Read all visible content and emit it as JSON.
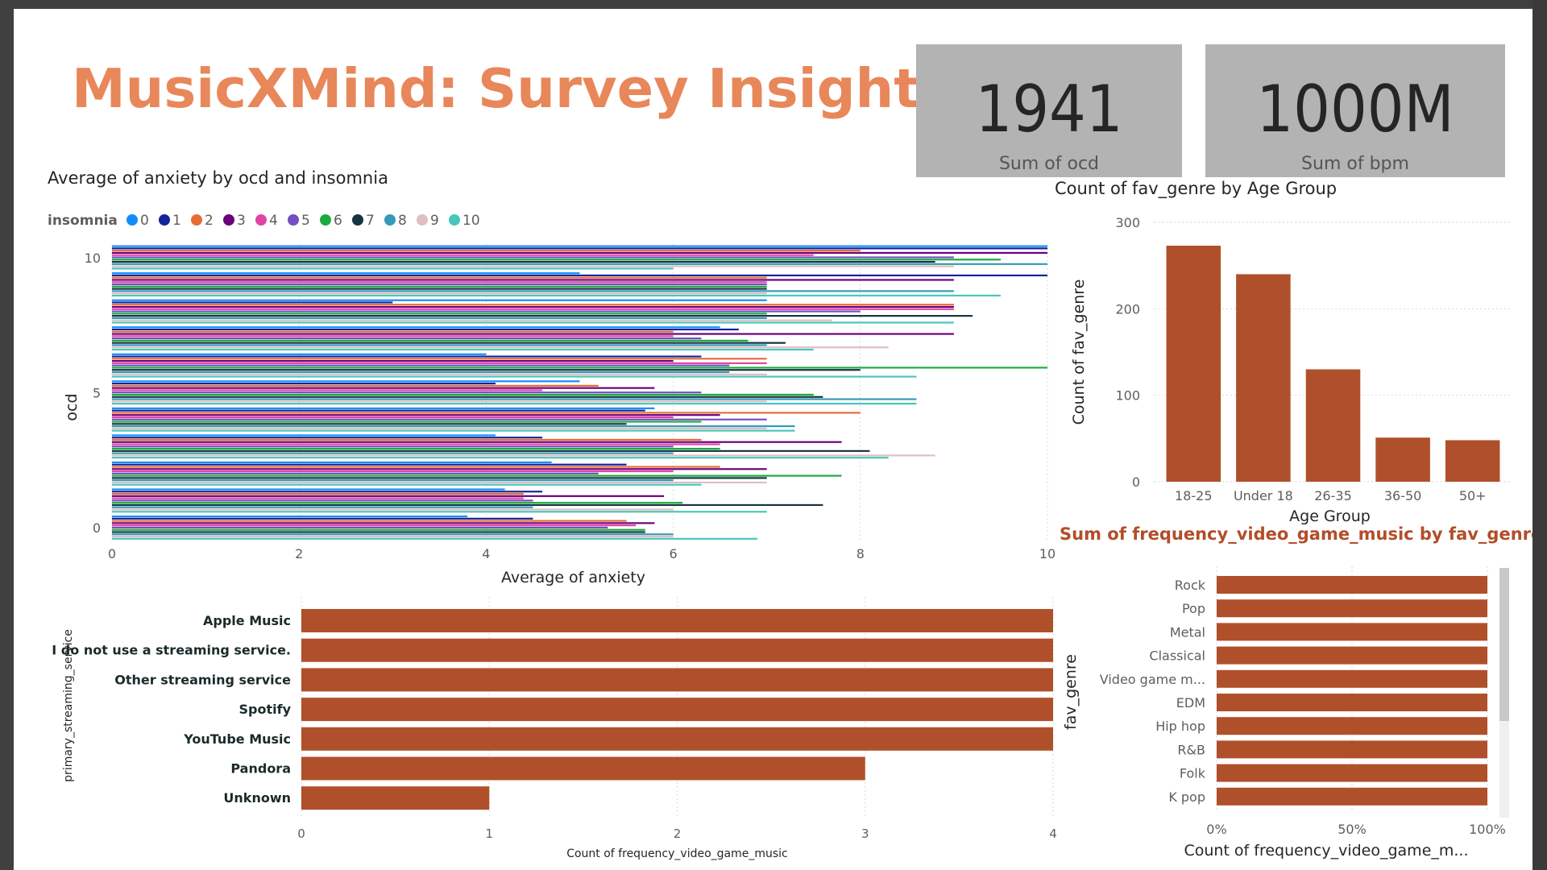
{
  "title": "MusicXMind: Survey Insights",
  "cards": [
    {
      "value": "1941",
      "label": "Sum of ocd"
    },
    {
      "value": "1000M",
      "label": "Sum of bpm"
    }
  ],
  "chart_data": [
    {
      "id": "anxiety",
      "type": "bar",
      "orientation": "horizontal",
      "title": "Average of anxiety by ocd and insomnia",
      "xlabel": "Average of anxiety",
      "ylabel": "ocd",
      "legend_title": "insomnia",
      "legend_position": "top-left",
      "xlim": [
        0,
        10
      ],
      "x_ticks": [
        "0",
        "2",
        "4",
        "6",
        "8",
        "10"
      ],
      "ylim": [
        0,
        10
      ],
      "y_ticks": [
        "0",
        "5",
        "10"
      ],
      "grid": true,
      "categories": [
        "0",
        "1",
        "2",
        "3",
        "4",
        "5",
        "6",
        "7",
        "8",
        "9",
        "10"
      ],
      "series": [
        {
          "name": "0",
          "color": "#118dff",
          "values": [
            3.8,
            4.2,
            4.7,
            4.1,
            5.8,
            5.0,
            4.0,
            6.5,
            7.0,
            5.0,
            10.0
          ]
        },
        {
          "name": "1",
          "color": "#12239e",
          "values": [
            4.5,
            4.6,
            5.5,
            4.6,
            5.7,
            4.1,
            6.3,
            6.7,
            3.0,
            10.0,
            10.0
          ]
        },
        {
          "name": "2",
          "color": "#e66c37",
          "values": [
            5.5,
            4.4,
            6.5,
            6.3,
            8.0,
            5.2,
            7.0,
            6.0,
            9.0,
            7.0,
            8.0
          ]
        },
        {
          "name": "3",
          "color": "#6b007b",
          "values": [
            5.8,
            5.9,
            7.0,
            7.8,
            6.5,
            5.8,
            6.0,
            9.0,
            9.0,
            9.0,
            10.0
          ]
        },
        {
          "name": "4",
          "color": "#e044a7",
          "values": [
            5.6,
            4.4,
            6.0,
            6.5,
            6.0,
            4.6,
            7.0,
            6.0,
            9.0,
            7.0,
            7.5
          ]
        },
        {
          "name": "5",
          "color": "#744ec2",
          "values": [
            5.3,
            4.5,
            5.2,
            6.0,
            7.0,
            6.3,
            6.6,
            6.3,
            8.0,
            7.0,
            9.0
          ]
        },
        {
          "name": "6",
          "color": "#1aab40",
          "values": [
            5.7,
            6.1,
            7.8,
            6.5,
            6.3,
            7.5,
            10.0,
            6.8,
            7.0,
            7.0,
            9.5
          ]
        },
        {
          "name": "7",
          "color": "#15343f",
          "values": [
            5.7,
            7.6,
            7.0,
            8.1,
            5.5,
            7.6,
            8.0,
            7.2,
            9.2,
            7.0,
            8.8
          ]
        },
        {
          "name": "8",
          "color": "#3599b8",
          "values": [
            6.0,
            4.5,
            6.0,
            6.0,
            7.3,
            8.6,
            6.6,
            7.0,
            7.0,
            9.0,
            10.0
          ]
        },
        {
          "name": "9",
          "color": "#dfbfbf",
          "values": [
            6.0,
            6.0,
            7.0,
            8.8,
            7.0,
            7.0,
            7.0,
            8.3,
            7.7,
            7.0,
            9.0
          ]
        },
        {
          "name": "10",
          "color": "#4ac5bb",
          "values": [
            6.9,
            7.0,
            6.3,
            8.3,
            7.3,
            8.6,
            8.6,
            7.5,
            9.0,
            9.5,
            6.0
          ]
        }
      ]
    },
    {
      "id": "age",
      "type": "bar",
      "title": "Count of fav_genre by Age Group",
      "xlabel": "Age Group",
      "ylabel": "Count of fav_genre",
      "color": "#b0502a",
      "ylim": [
        0,
        300
      ],
      "y_ticks": [
        "0",
        "100",
        "200",
        "300"
      ],
      "grid": true,
      "categories": [
        "18-25",
        "Under 18",
        "26-35",
        "36-50",
        "50+"
      ],
      "values": [
        273,
        240,
        130,
        51,
        48
      ]
    },
    {
      "id": "streaming",
      "type": "bar",
      "orientation": "horizontal",
      "xlabel": "Count of frequency_video_game_music",
      "ylabel": "primary_streaming_service",
      "color": "#b0502a",
      "xlim": [
        0,
        4
      ],
      "x_ticks": [
        "0",
        "1",
        "2",
        "3",
        "4"
      ],
      "grid": true,
      "categories": [
        "Apple Music",
        "I do not use a streaming service.",
        "Other streaming service",
        "Spotify",
        "YouTube Music",
        "Pandora",
        "Unknown"
      ],
      "values": [
        4,
        4,
        4,
        4,
        4,
        3,
        1
      ]
    },
    {
      "id": "genre",
      "type": "bar",
      "orientation": "horizontal",
      "stacked_percent": true,
      "title": "Sum of frequency_video_game_music by fav_genre",
      "xlabel": "Count of frequency_video_game_m...",
      "ylabel": "fav_genre",
      "color": "#b0502a",
      "xlim": [
        0,
        100
      ],
      "x_ticks": [
        "0%",
        "50%",
        "100%"
      ],
      "grid": true,
      "categories": [
        "Rock",
        "Pop",
        "Metal",
        "Classical",
        "Video game m...",
        "EDM",
        "Hip hop",
        "R&B",
        "Folk",
        "K pop"
      ],
      "values": [
        100,
        100,
        100,
        100,
        100,
        100,
        100,
        100,
        100,
        100
      ]
    }
  ]
}
